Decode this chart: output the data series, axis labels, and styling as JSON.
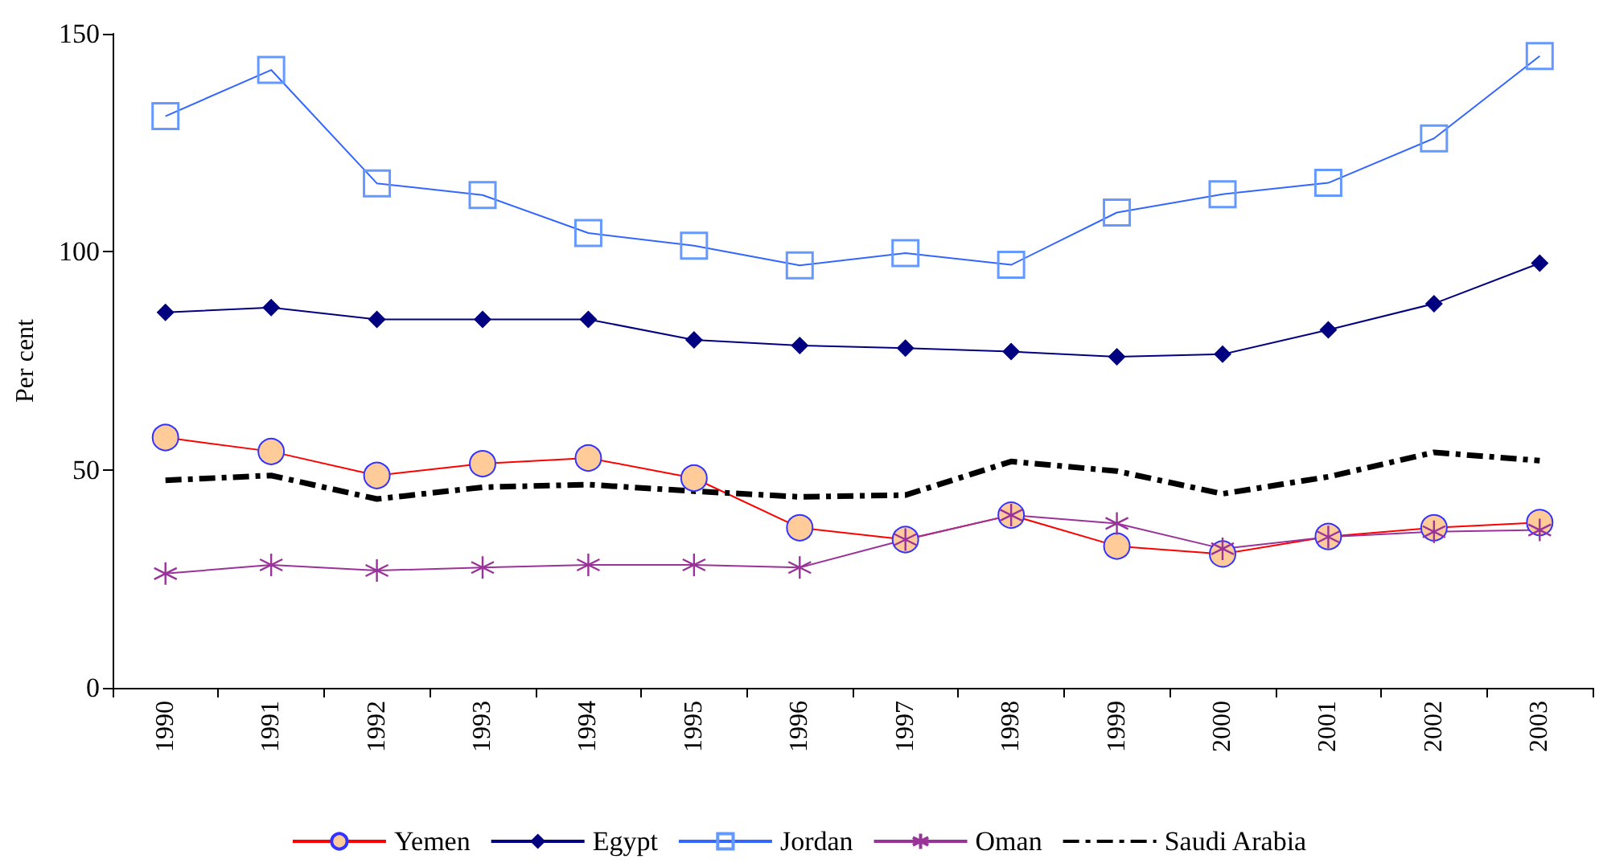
{
  "chart_data": {
    "type": "line",
    "ylabel": "Per cent",
    "categories": [
      "1990",
      "1991",
      "1992",
      "1993",
      "1994",
      "1995",
      "1996",
      "1997",
      "1998",
      "1999",
      "2000",
      "2001",
      "2002",
      "2003"
    ],
    "ylim": [
      0,
      150
    ],
    "yticks": [
      0,
      50,
      100,
      150
    ],
    "grid": false,
    "legend": "bottom",
    "series": [
      {
        "name": "Yemen",
        "color": "#ff0000",
        "marker": "circle",
        "line_style": "solid",
        "values": [
          57.4,
          54.2,
          48.7,
          51.4,
          52.7,
          48.1,
          36.7,
          34,
          39.6,
          32.5,
          30.7,
          34.7,
          36.7,
          37.9
        ]
      },
      {
        "name": "Egypt",
        "color": "#000080",
        "marker": "diamond",
        "line_style": "solid",
        "values": [
          86.1,
          87.2,
          84.5,
          84.5,
          84.5,
          79.8,
          78.5,
          77.9,
          77.1,
          75.9,
          76.5,
          82.1,
          88.1,
          97.4
        ]
      },
      {
        "name": "Jordan",
        "color": "#3366ff",
        "marker": "square",
        "line_style": "solid",
        "values": [
          131.1,
          141.7,
          115.7,
          113,
          104.3,
          101.4,
          96.9,
          99.7,
          97,
          109,
          113.2,
          115.8,
          126,
          144.9
        ]
      },
      {
        "name": "Oman",
        "color": "#993399",
        "marker": "cross",
        "line_style": "solid",
        "values": [
          26.2,
          28.2,
          26.9,
          27.6,
          28.2,
          28.2,
          27.6,
          34,
          39.6,
          37.7,
          31.9,
          34.6,
          35.8,
          36.2
        ]
      },
      {
        "name": "Saudi Arabia",
        "color": "#000000",
        "marker": "none",
        "line_style": "dashed",
        "values": [
          47.6,
          48.7,
          43.3,
          46,
          46.6,
          45.1,
          43.8,
          44.2,
          51.9,
          49.7,
          44.5,
          48.4,
          54,
          52.1
        ]
      }
    ]
  }
}
